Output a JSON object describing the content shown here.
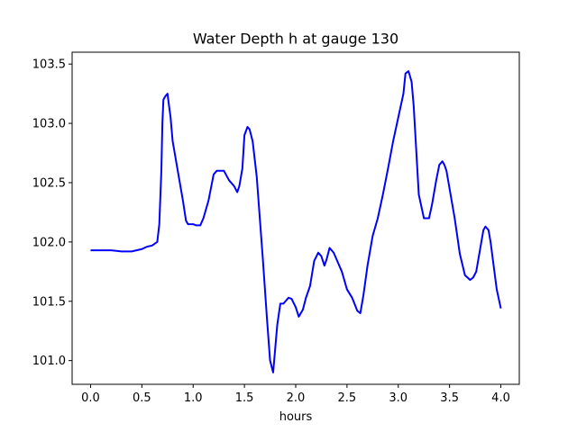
{
  "chart_data": {
    "type": "line",
    "title": "Water Depth h at gauge 130",
    "xlabel": "hours",
    "ylabel": "",
    "xlim": [
      -0.18,
      4.18
    ],
    "ylim": [
      100.8,
      103.6
    ],
    "xticks": [
      0.0,
      0.5,
      1.0,
      1.5,
      2.0,
      2.5,
      3.0,
      3.5,
      4.0
    ],
    "xtick_labels": [
      "0.0",
      "0.5",
      "1.0",
      "1.5",
      "2.0",
      "2.5",
      "3.0",
      "3.5",
      "4.0"
    ],
    "yticks": [
      101.0,
      101.5,
      102.0,
      102.5,
      103.0,
      103.5
    ],
    "ytick_labels": [
      "101.0",
      "101.5",
      "102.0",
      "102.5",
      "103.0",
      "103.5"
    ],
    "grid": false,
    "series": [
      {
        "name": "",
        "color": "#0000ff",
        "x": [
          0.0,
          0.1,
          0.2,
          0.3,
          0.4,
          0.5,
          0.55,
          0.6,
          0.65,
          0.67,
          0.69,
          0.7,
          0.71,
          0.73,
          0.75,
          0.76,
          0.78,
          0.8,
          0.85,
          0.9,
          0.93,
          0.95,
          0.98,
          1.0,
          1.03,
          1.07,
          1.1,
          1.15,
          1.2,
          1.23,
          1.25,
          1.3,
          1.35,
          1.4,
          1.43,
          1.45,
          1.48,
          1.5,
          1.53,
          1.55,
          1.58,
          1.62,
          1.65,
          1.68,
          1.72,
          1.75,
          1.78,
          1.8,
          1.82,
          1.85,
          1.88,
          1.9,
          1.93,
          1.96,
          2.0,
          2.03,
          2.07,
          2.1,
          2.14,
          2.18,
          2.22,
          2.25,
          2.28,
          2.3,
          2.33,
          2.37,
          2.4,
          2.45,
          2.5,
          2.55,
          2.6,
          2.63,
          2.66,
          2.7,
          2.75,
          2.8,
          2.85,
          2.9,
          2.95,
          3.0,
          3.05,
          3.07,
          3.1,
          3.13,
          3.15,
          3.2,
          3.25,
          3.3,
          3.33,
          3.37,
          3.4,
          3.43,
          3.45,
          3.47,
          3.5,
          3.55,
          3.6,
          3.65,
          3.7,
          3.73,
          3.76,
          3.8,
          3.83,
          3.85,
          3.88,
          3.9,
          3.93,
          3.96,
          4.0
        ],
        "y": [
          101.93,
          101.93,
          101.93,
          101.92,
          101.92,
          101.94,
          101.96,
          101.97,
          102.0,
          102.15,
          102.6,
          103.0,
          103.2,
          103.23,
          103.25,
          103.18,
          103.05,
          102.85,
          102.6,
          102.35,
          102.18,
          102.15,
          102.15,
          102.15,
          102.14,
          102.14,
          102.2,
          102.35,
          102.57,
          102.6,
          102.6,
          102.6,
          102.52,
          102.47,
          102.42,
          102.47,
          102.62,
          102.9,
          102.97,
          102.95,
          102.85,
          102.55,
          102.2,
          101.85,
          101.35,
          101.0,
          100.9,
          101.1,
          101.3,
          101.48,
          101.48,
          101.5,
          101.53,
          101.52,
          101.45,
          101.37,
          101.43,
          101.53,
          101.63,
          101.84,
          101.91,
          101.88,
          101.8,
          101.85,
          101.95,
          101.91,
          101.85,
          101.75,
          101.6,
          101.53,
          101.42,
          101.4,
          101.55,
          101.8,
          102.05,
          102.2,
          102.4,
          102.62,
          102.85,
          103.05,
          103.25,
          103.42,
          103.44,
          103.35,
          103.15,
          102.4,
          102.2,
          102.2,
          102.32,
          102.52,
          102.65,
          102.68,
          102.65,
          102.6,
          102.45,
          102.2,
          101.9,
          101.72,
          101.68,
          101.7,
          101.75,
          101.95,
          102.1,
          102.13,
          102.1,
          102.0,
          101.8,
          101.6,
          101.44
        ]
      }
    ]
  }
}
